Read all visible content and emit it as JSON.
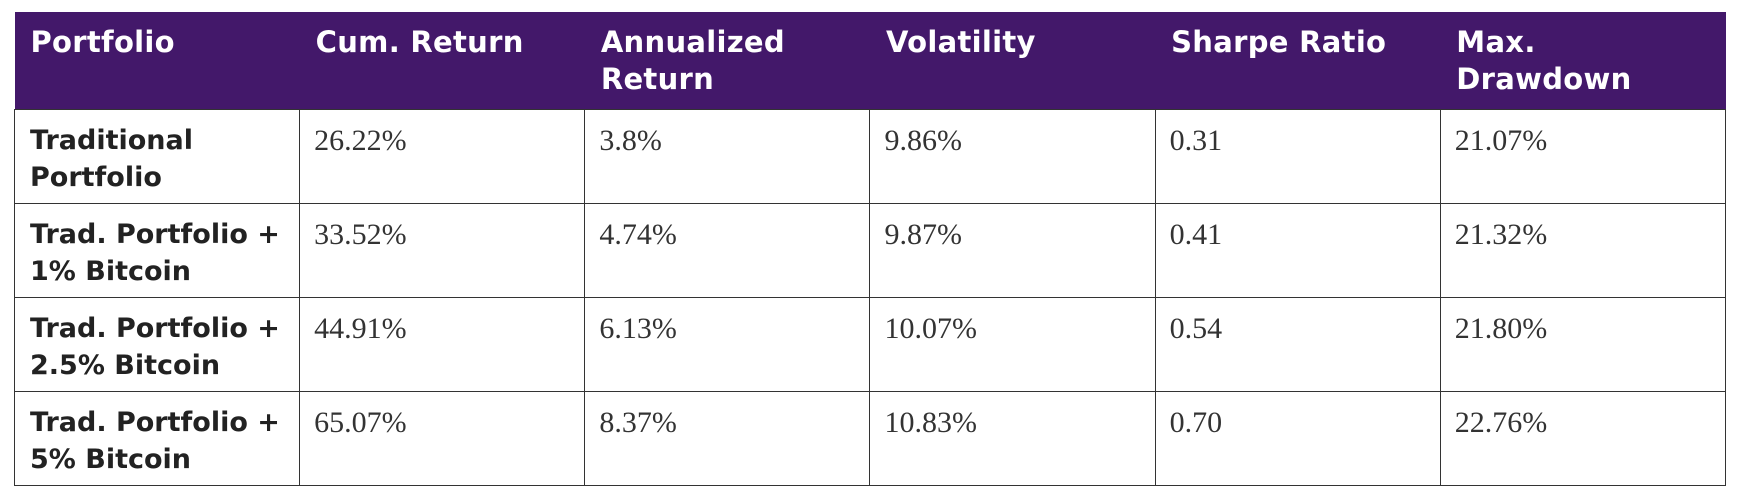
{
  "chart_data": {
    "type": "table",
    "columns": [
      "Portfolio",
      "Cum. Return",
      "Annualized Return",
      "Volatility",
      "Sharpe Ratio",
      "Max. Drawdown"
    ],
    "rows": [
      [
        "Traditional Portfolio",
        "26.22%",
        "3.8%",
        "9.86%",
        "0.31",
        "21.07%"
      ],
      [
        "Trad. Portfolio + 1% Bitcoin",
        "33.52%",
        "4.74%",
        "9.87%",
        "0.41",
        "21.32%"
      ],
      [
        "Trad. Portfolio + 2.5% Bitcoin",
        "44.91%",
        "6.13%",
        "10.07%",
        "0.54",
        "21.80%"
      ],
      [
        "Trad. Portfolio + 5% Bitcoin",
        "65.07%",
        "8.37%",
        "10.83%",
        "0.70",
        "22.76%"
      ]
    ],
    "header_color": "#43186a",
    "header_text_color": "#ffffff",
    "border_color": "#333333"
  }
}
